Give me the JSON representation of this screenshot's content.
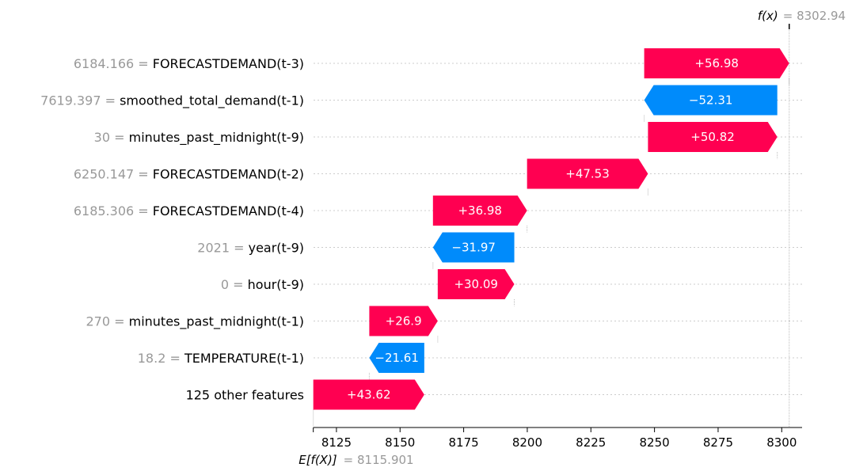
{
  "chart_data": {
    "type": "waterfall",
    "base_value": 8115.901,
    "output_value": 8302.94,
    "base_label": "E[f(X)]",
    "base_value_text": "= 8115.901",
    "output_label": "f(x)",
    "output_value_text": "= 8302.94",
    "xlim": [
      8116,
      8308
    ],
    "x_ticks": [
      8125,
      8150,
      8175,
      8200,
      8225,
      8250,
      8275,
      8300
    ],
    "features": [
      {
        "value_text": "6184.166 =",
        "name": "FORECASTDEMAND(t-3)",
        "contribution": 56.98,
        "label": "+56.98"
      },
      {
        "value_text": "7619.397 =",
        "name": "smoothed_total_demand(t-1)",
        "contribution": -52.31,
        "label": "−52.31"
      },
      {
        "value_text": "30 =",
        "name": "minutes_past_midnight(t-9)",
        "contribution": 50.82,
        "label": "+50.82"
      },
      {
        "value_text": "6250.147 =",
        "name": "FORECASTDEMAND(t-2)",
        "contribution": 47.53,
        "label": "+47.53"
      },
      {
        "value_text": "6185.306 =",
        "name": "FORECASTDEMAND(t-4)",
        "contribution": 36.98,
        "label": "+36.98"
      },
      {
        "value_text": "2021 =",
        "name": "year(t-9)",
        "contribution": -31.97,
        "label": "−31.97"
      },
      {
        "value_text": "0 =",
        "name": "hour(t-9)",
        "contribution": 30.09,
        "label": "+30.09"
      },
      {
        "value_text": "270 =",
        "name": "minutes_past_midnight(t-1)",
        "contribution": 26.9,
        "label": "+26.9"
      },
      {
        "value_text": "18.2 =",
        "name": "TEMPERATURE(t-1)",
        "contribution": -21.61,
        "label": "−21.61"
      },
      {
        "value_text": "",
        "name": "125 other features",
        "contribution": 43.62,
        "label": "+43.62"
      }
    ],
    "colors": {
      "positive": "#ff0051",
      "negative": "#008bfb",
      "grid": "#cccccc",
      "axis": "#000000"
    }
  }
}
